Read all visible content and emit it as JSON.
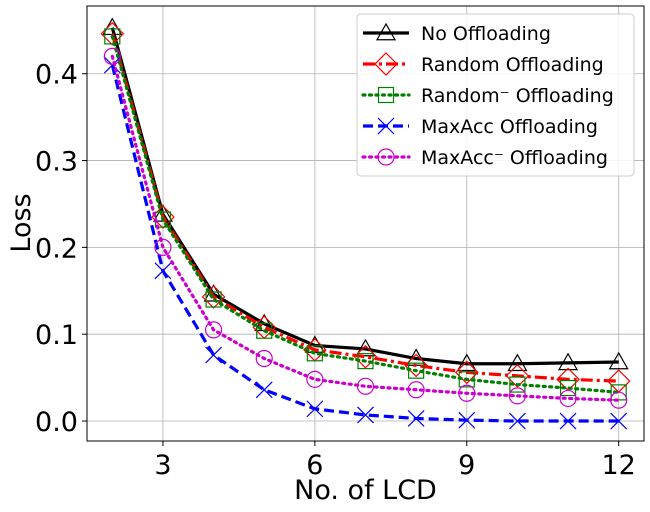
{
  "chart_data": {
    "type": "line",
    "xlabel": "No. of LCD",
    "ylabel": "Loss",
    "x": [
      2,
      3,
      4,
      5,
      6,
      7,
      8,
      9,
      10,
      11,
      12
    ],
    "xlim": [
      1.5,
      12.5
    ],
    "ylim": [
      -0.023,
      0.478
    ],
    "xticks": [
      3,
      6,
      9,
      12
    ],
    "xtick_labels": [
      "3",
      "6",
      "9",
      "12"
    ],
    "yticks": [
      0.0,
      0.1,
      0.2,
      0.3,
      0.4
    ],
    "ytick_labels": [
      "0.0",
      "0.1",
      "0.2",
      "0.3",
      "0.4"
    ],
    "grid": true,
    "legend_position": "top-right",
    "series": [
      {
        "name": "No Offloading",
        "color": "#000000",
        "linestyle": "solid",
        "marker": "triangle",
        "values": [
          0.453,
          0.238,
          0.146,
          0.112,
          0.087,
          0.083,
          0.072,
          0.066,
          0.066,
          0.067,
          0.068
        ]
      },
      {
        "name": "Random Offloading",
        "color": "#ff0000",
        "linestyle": "dashdot",
        "marker": "diamond",
        "values": [
          0.446,
          0.235,
          0.143,
          0.108,
          0.082,
          0.074,
          0.064,
          0.056,
          0.052,
          0.048,
          0.046
        ]
      },
      {
        "name": "Random⁻ Offloading",
        "color": "#008000",
        "linestyle": "dotted",
        "marker": "square",
        "values": [
          0.443,
          0.232,
          0.14,
          0.104,
          0.078,
          0.069,
          0.058,
          0.048,
          0.042,
          0.038,
          0.033
        ]
      },
      {
        "name": "MaxAcc Offloading",
        "color": "#0000ff",
        "linestyle": "dashed",
        "marker": "x",
        "values": [
          0.41,
          0.173,
          0.076,
          0.036,
          0.014,
          0.007,
          0.003,
          0.001,
          0.0,
          0.0,
          0.0
        ]
      },
      {
        "name": "MaxAcc⁻ Offloading",
        "color": "#cc00cc",
        "linestyle": "dotted",
        "marker": "circle",
        "values": [
          0.42,
          0.2,
          0.105,
          0.072,
          0.048,
          0.04,
          0.036,
          0.032,
          0.029,
          0.026,
          0.024
        ]
      }
    ]
  }
}
